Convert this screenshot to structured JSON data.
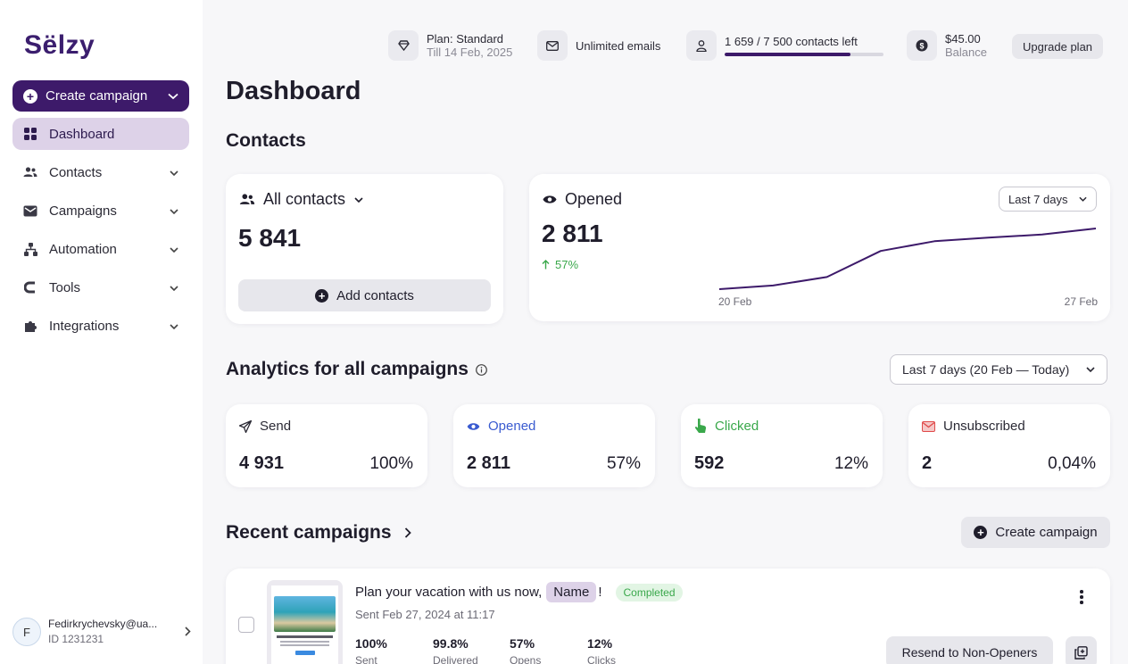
{
  "sidebar": {
    "logo": "Sëlzy",
    "create_label": "Create campaign",
    "items": [
      {
        "label": "Dashboard"
      },
      {
        "label": "Contacts"
      },
      {
        "label": "Campaigns"
      },
      {
        "label": "Automation"
      },
      {
        "label": "Tools"
      },
      {
        "label": "Integrations"
      }
    ],
    "account": {
      "initial": "F",
      "email": "Fedirkrychevsky@ua...",
      "id": "ID 1231231"
    }
  },
  "topbar": {
    "plan": "Plan: Standard",
    "plan_date": "Till 14 Feb, 2025",
    "emails": "Unlimited emails",
    "contacts_left": "1 659 / 7 500 contacts left",
    "contacts_progress": 0.79,
    "balance_amount": "$45.00",
    "balance_label": "Balance",
    "upgrade_label": "Upgrade plan"
  },
  "page_title": "Dashboard",
  "contacts": {
    "section_title": "Contacts",
    "all_contacts_label": "All contacts",
    "all_contacts_value": "5 841",
    "add_contacts_label": "Add contacts",
    "opened_label": "Opened",
    "opened_value": "2 811",
    "opened_change": "57%",
    "range_label": "Last 7 days",
    "chart_x_start": "20 Feb",
    "chart_x_end": "27 Feb"
  },
  "chart_data": {
    "type": "line",
    "x": [
      "20 Feb",
      "21 Feb",
      "22 Feb",
      "23 Feb",
      "24 Feb",
      "25 Feb",
      "26 Feb",
      "27 Feb"
    ],
    "series": [
      {
        "values": [
          0.0,
          0.06,
          0.2,
          0.63,
          0.79,
          0.85,
          0.9,
          1.0
        ]
      }
    ],
    "x_tick_labels": [
      "20 Feb",
      "27 Feb"
    ],
    "grid": false
  },
  "analytics": {
    "section_title": "Analytics for all campaigns",
    "range_label": "Last 7 days (20 Feb — Today)",
    "stats": [
      {
        "label": "Send",
        "value": "4 931",
        "pct": "100%",
        "color": "#2b2a35"
      },
      {
        "label": "Opened",
        "value": "2 811",
        "pct": "57%",
        "color": "#3a5bd0"
      },
      {
        "label": "Clicked",
        "value": "592",
        "pct": "12%",
        "color": "#3aa84b"
      },
      {
        "label": "Unsubscribed",
        "value": "2",
        "pct": "0,04%",
        "color": "#2b2a35"
      }
    ]
  },
  "recent": {
    "section_title": "Recent campaigns",
    "create_label": "Create campaign",
    "campaign": {
      "subject_prefix": "Plan your vacation with us now,",
      "name_tag": "Name",
      "subject_suffix": "!",
      "status": "Completed",
      "sent_date": "Sent Feb 27, 2024 at 11:17",
      "metrics": [
        {
          "value": "100%",
          "label": "Sent"
        },
        {
          "value": "99.8%",
          "label": "Delivered"
        },
        {
          "value": "57%",
          "label": "Opens"
        },
        {
          "value": "12%",
          "label": "Clicks"
        }
      ],
      "resend_label": "Resend to Non-Openers"
    }
  },
  "colors": {
    "brand": "#3d1a6a",
    "accent_light": "#ddd2e8",
    "success": "#3aa84b",
    "link": "#3a5bd0"
  }
}
